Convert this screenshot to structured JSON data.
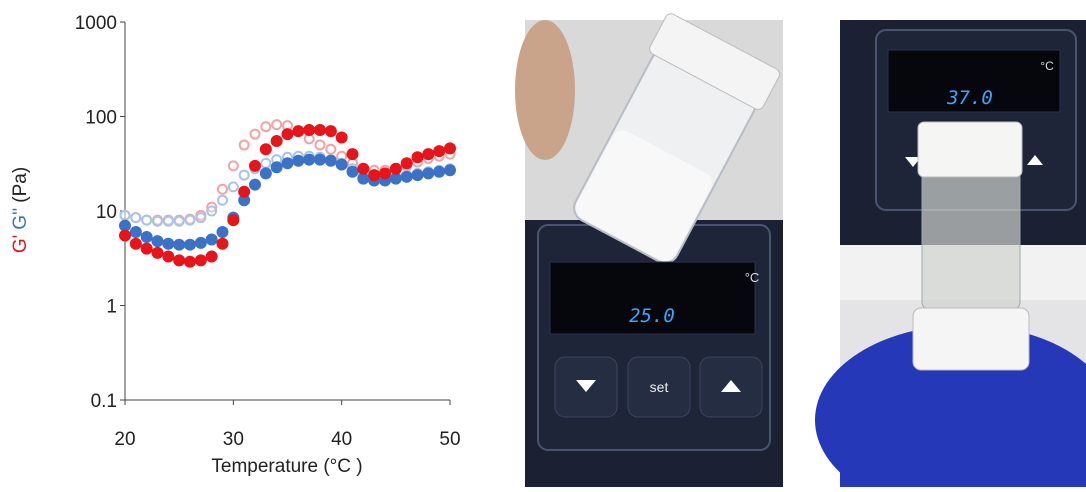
{
  "chart_data": {
    "type": "line",
    "xlabel": "Temperature (°C )",
    "ylabel": "(Pa)",
    "log_y": true,
    "xlim": [
      20,
      50
    ],
    "xticks": [
      20,
      30,
      40,
      50
    ],
    "ylim": [
      0.1,
      1000
    ],
    "yticks": [
      0.1,
      1,
      10,
      100,
      1000
    ],
    "x": [
      20,
      21,
      22,
      23,
      24,
      25,
      26,
      27,
      28,
      29,
      30,
      31,
      32,
      33,
      34,
      35,
      36,
      37,
      38,
      39,
      40,
      41,
      42,
      43,
      44,
      45,
      46,
      47,
      48,
      49,
      50
    ],
    "series": [
      {
        "name": "G'",
        "color": "#e6141b",
        "marker": "filled",
        "values": [
          5.5,
          4.5,
          4,
          3.6,
          3.3,
          3.0,
          2.9,
          3.0,
          3.3,
          4.5,
          8,
          16,
          30,
          45,
          55,
          65,
          70,
          72,
          72,
          70,
          60,
          40,
          28,
          24,
          25,
          28,
          32,
          37,
          40,
          43,
          46
        ]
      },
      {
        "color": "#f2a3a3",
        "marker": "open",
        "values": [
          9,
          8.5,
          8,
          8,
          8,
          8,
          8.2,
          9,
          11,
          17,
          30,
          50,
          65,
          78,
          82,
          80,
          70,
          58,
          50,
          45,
          38,
          32,
          28,
          27,
          27,
          28,
          30,
          33,
          36,
          38,
          40
        ]
      },
      {
        "name": "G''",
        "color": "#3b72c6",
        "marker": "filled",
        "values": [
          7,
          6,
          5.3,
          4.8,
          4.5,
          4.4,
          4.4,
          4.6,
          5.0,
          6.0,
          8.5,
          13,
          19,
          25,
          29,
          32,
          34,
          35,
          35,
          34,
          31,
          26,
          22,
          21,
          21,
          22,
          23,
          24,
          25,
          26,
          27
        ]
      },
      {
        "color": "#a8c3e8",
        "marker": "open",
        "values": [
          9,
          8.5,
          8,
          7.8,
          7.8,
          7.8,
          8,
          8.5,
          10,
          13,
          18,
          24,
          28,
          32,
          35,
          37,
          38,
          38,
          37,
          35,
          32,
          28,
          25,
          23,
          23,
          23,
          24,
          25,
          26,
          27,
          28
        ]
      }
    ]
  },
  "photos": [
    {
      "display": "25.0",
      "unit": "°C",
      "button": "set"
    },
    {
      "display": "37.0",
      "unit": "°C"
    }
  ]
}
